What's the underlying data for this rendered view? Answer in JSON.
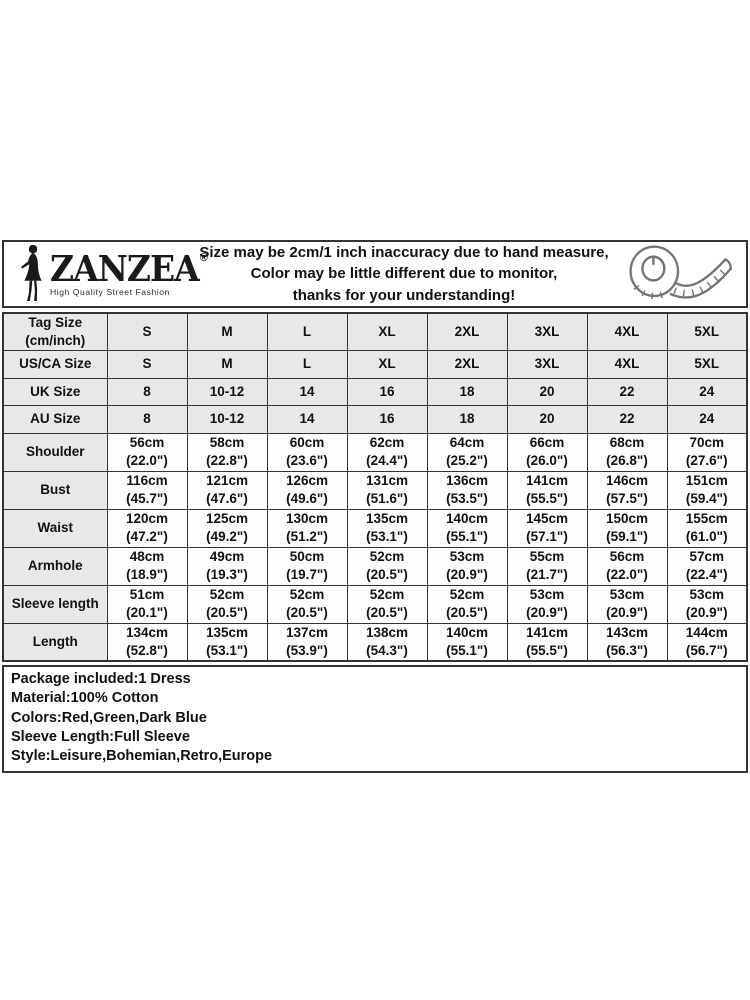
{
  "header": {
    "brand": "ZANZEA",
    "registered_mark": "®",
    "tagline": "High Quality Street Fashion",
    "disclaimer_lines": [
      "Size may be 2cm/1 inch inaccuracy due to hand measure,",
      "Color may be little different due to monitor,",
      "thanks for your understanding!"
    ]
  },
  "table": {
    "rows": [
      {
        "shaded": true,
        "label": [
          "Tag Size",
          "(cm/inch)"
        ],
        "cells": [
          [
            "S"
          ],
          [
            "M"
          ],
          [
            "L"
          ],
          [
            "XL"
          ],
          [
            "2XL"
          ],
          [
            "3XL"
          ],
          [
            "4XL"
          ],
          [
            "5XL"
          ]
        ]
      },
      {
        "shaded": true,
        "label": [
          "US/CA Size"
        ],
        "cells": [
          [
            "S"
          ],
          [
            "M"
          ],
          [
            "L"
          ],
          [
            "XL"
          ],
          [
            "2XL"
          ],
          [
            "3XL"
          ],
          [
            "4XL"
          ],
          [
            "5XL"
          ]
        ]
      },
      {
        "shaded": true,
        "label": [
          "UK Size"
        ],
        "cells": [
          [
            "8"
          ],
          [
            "10-12"
          ],
          [
            "14"
          ],
          [
            "16"
          ],
          [
            "18"
          ],
          [
            "20"
          ],
          [
            "22"
          ],
          [
            "24"
          ]
        ]
      },
      {
        "shaded": true,
        "label": [
          "AU Size"
        ],
        "cells": [
          [
            "8"
          ],
          [
            "10-12"
          ],
          [
            "14"
          ],
          [
            "16"
          ],
          [
            "18"
          ],
          [
            "20"
          ],
          [
            "22"
          ],
          [
            "24"
          ]
        ]
      },
      {
        "shaded": false,
        "label": [
          "Shoulder"
        ],
        "cells": [
          [
            "56cm",
            "(22.0\")"
          ],
          [
            "58cm",
            "(22.8\")"
          ],
          [
            "60cm",
            "(23.6\")"
          ],
          [
            "62cm",
            "(24.4\")"
          ],
          [
            "64cm",
            "(25.2\")"
          ],
          [
            "66cm",
            "(26.0\")"
          ],
          [
            "68cm",
            "(26.8\")"
          ],
          [
            "70cm",
            "(27.6\")"
          ]
        ]
      },
      {
        "shaded": false,
        "label": [
          "Bust"
        ],
        "cells": [
          [
            "116cm",
            "(45.7\")"
          ],
          [
            "121cm",
            "(47.6\")"
          ],
          [
            "126cm",
            "(49.6\")"
          ],
          [
            "131cm",
            "(51.6\")"
          ],
          [
            "136cm",
            "(53.5\")"
          ],
          [
            "141cm",
            "(55.5\")"
          ],
          [
            "146cm",
            "(57.5\")"
          ],
          [
            "151cm",
            "(59.4\")"
          ]
        ]
      },
      {
        "shaded": false,
        "label": [
          "Waist"
        ],
        "cells": [
          [
            "120cm",
            "(47.2\")"
          ],
          [
            "125cm",
            "(49.2\")"
          ],
          [
            "130cm",
            "(51.2\")"
          ],
          [
            "135cm",
            "(53.1\")"
          ],
          [
            "140cm",
            "(55.1\")"
          ],
          [
            "145cm",
            "(57.1\")"
          ],
          [
            "150cm",
            "(59.1\")"
          ],
          [
            "155cm",
            "(61.0\")"
          ]
        ]
      },
      {
        "shaded": false,
        "label": [
          "Armhole"
        ],
        "cells": [
          [
            "48cm",
            "(18.9\")"
          ],
          [
            "49cm",
            "(19.3\")"
          ],
          [
            "50cm",
            "(19.7\")"
          ],
          [
            "52cm",
            "(20.5\")"
          ],
          [
            "53cm",
            "(20.9\")"
          ],
          [
            "55cm",
            "(21.7\")"
          ],
          [
            "56cm",
            "(22.0\")"
          ],
          [
            "57cm",
            "(22.4\")"
          ]
        ]
      },
      {
        "shaded": false,
        "label": [
          "Sleeve length"
        ],
        "cells": [
          [
            "51cm",
            "(20.1\")"
          ],
          [
            "52cm",
            "(20.5\")"
          ],
          [
            "52cm",
            "(20.5\")"
          ],
          [
            "52cm",
            "(20.5\")"
          ],
          [
            "52cm",
            "(20.5\")"
          ],
          [
            "53cm",
            "(20.9\")"
          ],
          [
            "53cm",
            "(20.9\")"
          ],
          [
            "53cm",
            "(20.9\")"
          ]
        ]
      },
      {
        "shaded": false,
        "label": [
          "Length"
        ],
        "cells": [
          [
            "134cm",
            "(52.8\")"
          ],
          [
            "135cm",
            "(53.1\")"
          ],
          [
            "137cm",
            "(53.9\")"
          ],
          [
            "138cm",
            "(54.3\")"
          ],
          [
            "140cm",
            "(55.1\")"
          ],
          [
            "141cm",
            "(55.5\")"
          ],
          [
            "143cm",
            "(56.3\")"
          ],
          [
            "144cm",
            "(56.7\")"
          ]
        ]
      }
    ]
  },
  "footer": {
    "lines": [
      "Package included:1 Dress",
      "Material:100% Cotton",
      "Colors:Red,Green,Dark Blue",
      "Sleeve Length:Full Sleeve",
      "Style:Leisure,Bohemian,Retro,Europe"
    ]
  },
  "colors": {
    "cell_shaded": "#e8e8e8",
    "border": "#333333",
    "text": "#111111",
    "icon_gray": "#757575"
  },
  "icons": {
    "woman_figure": "woman-silhouette-icon",
    "tape_measure": "tape-measure-icon"
  }
}
